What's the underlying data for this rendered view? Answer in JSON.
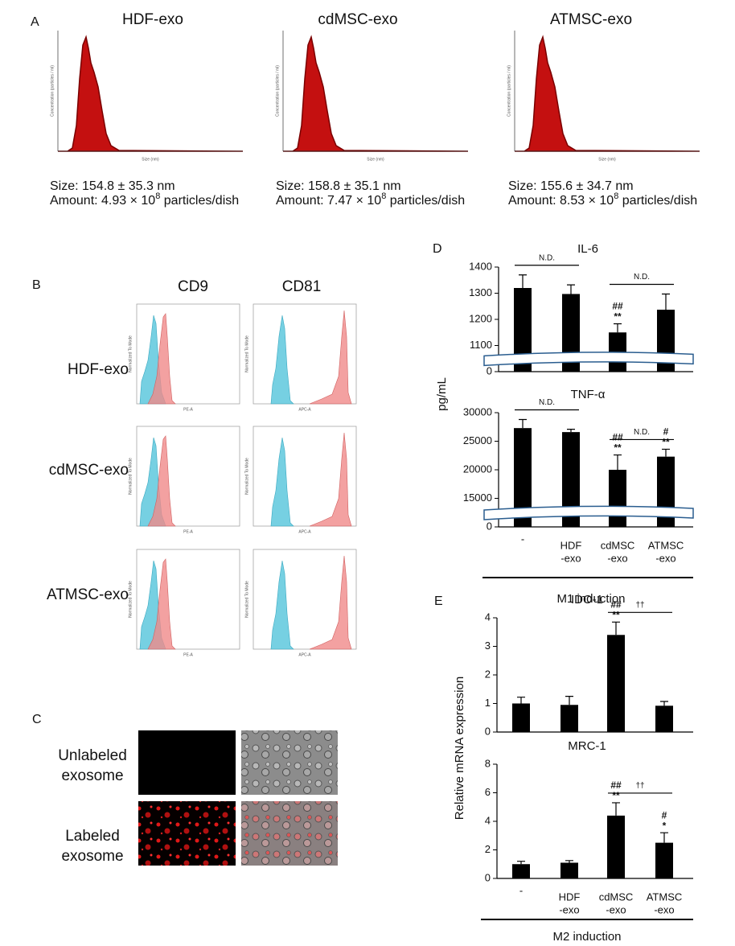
{
  "panel_a": {
    "label": "A",
    "x_label": "Size (nm)",
    "y_label": "Concentration (particles / ml)",
    "samples": [
      {
        "title": "HDF-exo",
        "size": "Size: 154.8 ± 35.3 nm",
        "amount_prefix": "Amount: 4.93 × 10",
        "amount_exponent": "8",
        "amount_suffix": " particles/dish"
      },
      {
        "title": "cdMSC-exo",
        "size": "Size: 158.8 ± 35.1 nm",
        "amount_prefix": "Amount: 7.47 × 10",
        "amount_exponent": "8",
        "amount_suffix": " particles/dish"
      },
      {
        "title": "ATMSC-exo",
        "size": "Size: 155.6 ± 34.7  nm",
        "amount_prefix": "Amount: 8.53 × 10",
        "amount_exponent": "8",
        "amount_suffix": " particles/dish"
      }
    ]
  },
  "panel_b": {
    "label": "B",
    "columns": [
      "CD9",
      "CD81"
    ],
    "rows": [
      "HDF-exo",
      "cdMSC-exo",
      "ATMSC-exo"
    ],
    "y_label": "Normalized To Mode",
    "x_labels": [
      "PE-A",
      "APC-A"
    ]
  },
  "panel_c": {
    "label": "C",
    "rows": [
      [
        "Unlabeled",
        "exosome"
      ],
      [
        "Labeled",
        "exosome"
      ]
    ]
  },
  "panel_d": {
    "label": "D",
    "y_label": "pg/mL",
    "group_label": "M1 induction",
    "categories": [
      [
        "-"
      ],
      [
        "HDF",
        "-exo"
      ],
      [
        "cdMSC",
        "-exo"
      ],
      [
        "ATMSC",
        "-exo"
      ]
    ]
  },
  "panel_e": {
    "label": "E",
    "y_label": "Relative mRNA expression",
    "group_label": "M2 induction",
    "categories": [
      [
        "-"
      ],
      [
        "HDF",
        "-exo"
      ],
      [
        "cdMSC",
        "-exo"
      ],
      [
        "ATMSC",
        "-exo"
      ]
    ]
  },
  "chart_data": [
    {
      "type": "bar",
      "title": "IL-6",
      "color": "#000000",
      "values": [
        1320,
        1297,
        1150,
        1237
      ],
      "errors": [
        50,
        35,
        33,
        60
      ],
      "annotations": [
        [],
        [],
        [
          "##",
          "**"
        ],
        []
      ],
      "brackets": [
        {
          "from": 0,
          "to": 1,
          "label": "N.D."
        },
        {
          "from": 2,
          "to": 3,
          "label": "N.D."
        }
      ],
      "ylim": [
        0,
        1400
      ],
      "yticks": [
        0,
        1100,
        1200,
        1300,
        1400
      ],
      "y_break": [
        0,
        1000
      ]
    },
    {
      "type": "bar",
      "title": "TNF-α",
      "color": "#000000",
      "values": [
        27300,
        26600,
        20000,
        22300
      ],
      "errors": [
        1500,
        500,
        2600,
        1300
      ],
      "annotations": [
        [],
        [],
        [
          "##",
          "**"
        ],
        [
          "#",
          "**"
        ]
      ],
      "brackets": [
        {
          "from": 0,
          "to": 1,
          "label": "N.D."
        },
        {
          "from": 2,
          "to": 3,
          "label": "N.D."
        }
      ],
      "ylim": [
        0,
        30000
      ],
      "yticks": [
        0,
        15000,
        20000,
        25000,
        30000
      ],
      "y_break": [
        0,
        10000
      ]
    },
    {
      "type": "bar",
      "title": "IDO-1",
      "color": "#000000",
      "values": [
        1.0,
        0.95,
        3.4,
        0.92
      ],
      "errors": [
        0.22,
        0.3,
        0.45,
        0.15
      ],
      "annotations": [
        [],
        [],
        [
          "##",
          "**"
        ],
        []
      ],
      "brackets": [
        {
          "from": 2,
          "to": 3,
          "label": "††"
        }
      ],
      "ylim": [
        0,
        4
      ],
      "yticks": [
        0,
        1,
        2,
        3,
        4
      ]
    },
    {
      "type": "bar",
      "title": "MRC-1",
      "color": "#000000",
      "values": [
        1.0,
        1.1,
        4.4,
        2.5
      ],
      "errors": [
        0.2,
        0.15,
        0.9,
        0.7
      ],
      "annotations": [
        [],
        [],
        [
          "##",
          "**"
        ],
        [
          "#",
          "*"
        ]
      ],
      "brackets": [
        {
          "from": 2,
          "to": 3,
          "label": "††"
        }
      ],
      "ylim": [
        0,
        8
      ],
      "yticks": [
        0,
        2,
        4,
        6,
        8
      ]
    }
  ]
}
